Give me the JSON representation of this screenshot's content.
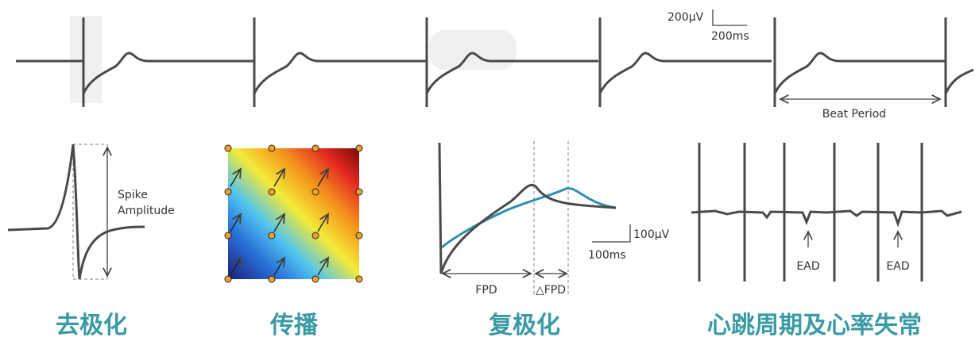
{
  "top_trace": {
    "scale_voltage": "200μV",
    "scale_time": "200ms",
    "beat_period": "Beat Period"
  },
  "panels": [
    {
      "caption": "去极化",
      "labels": [
        "Spike",
        "Amplitude"
      ]
    },
    {
      "caption": "传播"
    },
    {
      "caption": "复极化",
      "labels": [
        "FPD",
        "△FPD"
      ],
      "scale_voltage": "100μV",
      "scale_time": "100ms"
    },
    {
      "caption": "心跳周期及心率失常",
      "labels": [
        "EAD",
        "EAD"
      ]
    }
  ]
}
